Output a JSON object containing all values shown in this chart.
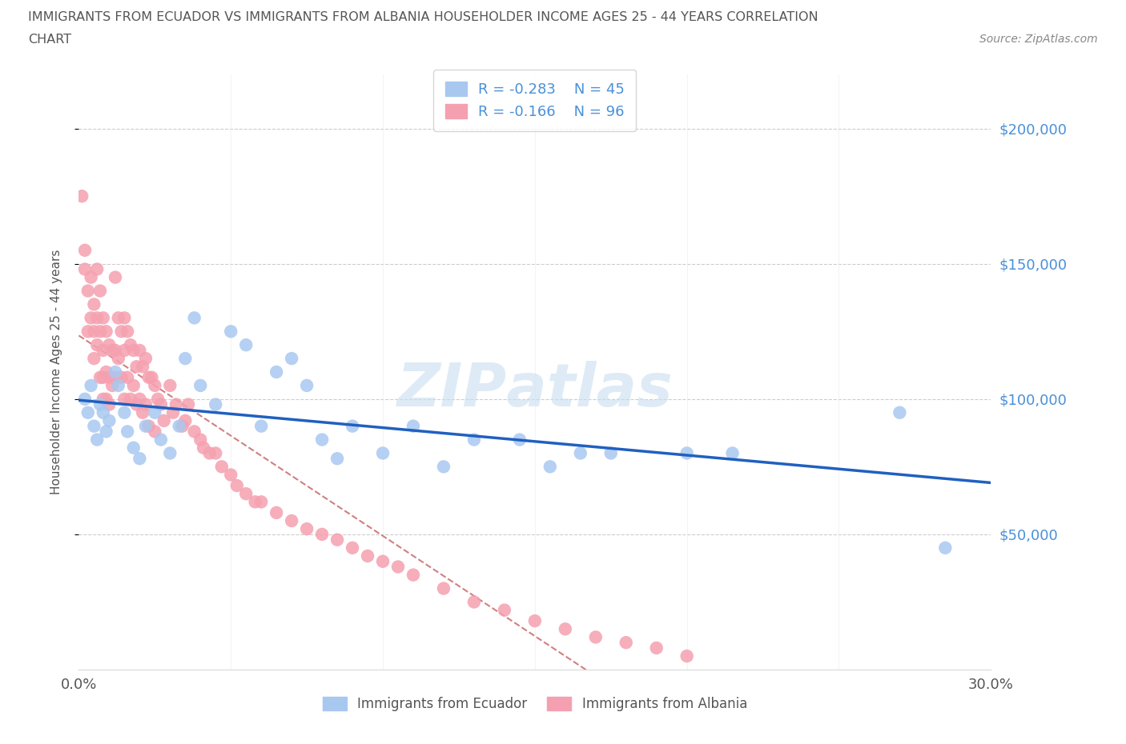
{
  "title_line1": "IMMIGRANTS FROM ECUADOR VS IMMIGRANTS FROM ALBANIA HOUSEHOLDER INCOME AGES 25 - 44 YEARS CORRELATION",
  "title_line2": "CHART",
  "source_text": "Source: ZipAtlas.com",
  "ylabel": "Householder Income Ages 25 - 44 years",
  "xlim": [
    0.0,
    0.3
  ],
  "ylim": [
    0,
    220000
  ],
  "ecuador_R": -0.283,
  "ecuador_N": 45,
  "albania_R": -0.166,
  "albania_N": 96,
  "ecuador_color": "#a8c8f0",
  "albania_color": "#f5a0b0",
  "ecuador_line_color": "#2060c0",
  "albania_line_color": "#d08080",
  "legend_label_ecuador": "Immigrants from Ecuador",
  "legend_label_albania": "Immigrants from Albania",
  "ecuador_x": [
    0.002,
    0.003,
    0.004,
    0.005,
    0.006,
    0.007,
    0.008,
    0.009,
    0.01,
    0.012,
    0.013,
    0.015,
    0.016,
    0.018,
    0.02,
    0.022,
    0.025,
    0.027,
    0.03,
    0.033,
    0.035,
    0.038,
    0.04,
    0.045,
    0.05,
    0.055,
    0.06,
    0.065,
    0.07,
    0.075,
    0.08,
    0.085,
    0.09,
    0.1,
    0.11,
    0.12,
    0.13,
    0.145,
    0.155,
    0.165,
    0.175,
    0.2,
    0.215,
    0.27,
    0.285
  ],
  "ecuador_y": [
    100000,
    95000,
    105000,
    90000,
    85000,
    98000,
    95000,
    88000,
    92000,
    110000,
    105000,
    95000,
    88000,
    82000,
    78000,
    90000,
    95000,
    85000,
    80000,
    90000,
    115000,
    130000,
    105000,
    98000,
    125000,
    120000,
    90000,
    110000,
    115000,
    105000,
    85000,
    78000,
    90000,
    80000,
    90000,
    75000,
    85000,
    85000,
    75000,
    80000,
    80000,
    80000,
    80000,
    95000,
    45000
  ],
  "albania_x": [
    0.001,
    0.002,
    0.002,
    0.003,
    0.003,
    0.004,
    0.004,
    0.005,
    0.005,
    0.005,
    0.006,
    0.006,
    0.006,
    0.007,
    0.007,
    0.007,
    0.008,
    0.008,
    0.008,
    0.008,
    0.009,
    0.009,
    0.009,
    0.01,
    0.01,
    0.01,
    0.011,
    0.011,
    0.012,
    0.012,
    0.012,
    0.013,
    0.013,
    0.014,
    0.014,
    0.015,
    0.015,
    0.015,
    0.016,
    0.016,
    0.017,
    0.017,
    0.018,
    0.018,
    0.019,
    0.019,
    0.02,
    0.02,
    0.021,
    0.021,
    0.022,
    0.022,
    0.023,
    0.023,
    0.024,
    0.025,
    0.025,
    0.026,
    0.027,
    0.028,
    0.03,
    0.031,
    0.032,
    0.034,
    0.035,
    0.036,
    0.038,
    0.04,
    0.041,
    0.043,
    0.045,
    0.047,
    0.05,
    0.052,
    0.055,
    0.058,
    0.06,
    0.065,
    0.07,
    0.075,
    0.08,
    0.085,
    0.09,
    0.095,
    0.1,
    0.105,
    0.11,
    0.12,
    0.13,
    0.14,
    0.15,
    0.16,
    0.17,
    0.18,
    0.19,
    0.2
  ],
  "albania_y": [
    175000,
    155000,
    148000,
    140000,
    125000,
    145000,
    130000,
    135000,
    125000,
    115000,
    148000,
    130000,
    120000,
    140000,
    125000,
    108000,
    130000,
    118000,
    108000,
    100000,
    125000,
    110000,
    100000,
    120000,
    108000,
    98000,
    118000,
    105000,
    145000,
    118000,
    108000,
    130000,
    115000,
    125000,
    108000,
    130000,
    118000,
    100000,
    125000,
    108000,
    120000,
    100000,
    118000,
    105000,
    112000,
    98000,
    118000,
    100000,
    112000,
    95000,
    115000,
    98000,
    108000,
    90000,
    108000,
    105000,
    88000,
    100000,
    98000,
    92000,
    105000,
    95000,
    98000,
    90000,
    92000,
    98000,
    88000,
    85000,
    82000,
    80000,
    80000,
    75000,
    72000,
    68000,
    65000,
    62000,
    62000,
    58000,
    55000,
    52000,
    50000,
    48000,
    45000,
    42000,
    40000,
    38000,
    35000,
    30000,
    25000,
    22000,
    18000,
    15000,
    12000,
    10000,
    8000,
    5000
  ]
}
